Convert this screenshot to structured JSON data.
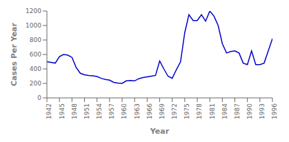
{
  "chart_data": {
    "type": "line",
    "x": [
      1942,
      1943,
      1944,
      1945,
      1946,
      1947,
      1948,
      1949,
      1950,
      1951,
      1952,
      1953,
      1954,
      1955,
      1956,
      1957,
      1958,
      1959,
      1960,
      1961,
      1962,
      1963,
      1964,
      1965,
      1966,
      1967,
      1968,
      1969,
      1970,
      1971,
      1972,
      1973,
      1974,
      1975,
      1976,
      1977,
      1978,
      1979,
      1980,
      1981,
      1982,
      1983,
      1984,
      1985,
      1986,
      1987,
      1988,
      1989,
      1990,
      1991,
      1992,
      1993,
      1994,
      1995,
      1996
    ],
    "values": [
      500,
      490,
      480,
      570,
      600,
      590,
      560,
      420,
      340,
      320,
      310,
      305,
      295,
      270,
      255,
      245,
      215,
      205,
      200,
      235,
      240,
      235,
      265,
      280,
      290,
      300,
      310,
      510,
      400,
      300,
      270,
      390,
      500,
      900,
      1150,
      1070,
      1070,
      1150,
      1060,
      1200,
      1130,
      1000,
      750,
      620,
      640,
      650,
      620,
      480,
      460,
      650,
      460,
      460,
      480,
      650,
      820
    ],
    "color": "#0000cc",
    "xlabel": "Year",
    "ylabel": "Cases Per Year",
    "xlim": [
      1942,
      1996
    ],
    "ylim": [
      0,
      1200
    ],
    "xticks": [
      1942,
      1945,
      1948,
      1951,
      1954,
      1957,
      1960,
      1963,
      1966,
      1969,
      1972,
      1975,
      1978,
      1981,
      1984,
      1987,
      1990,
      1993,
      1996
    ],
    "yticks": [
      0,
      200,
      400,
      600,
      800,
      1000,
      1200
    ]
  }
}
